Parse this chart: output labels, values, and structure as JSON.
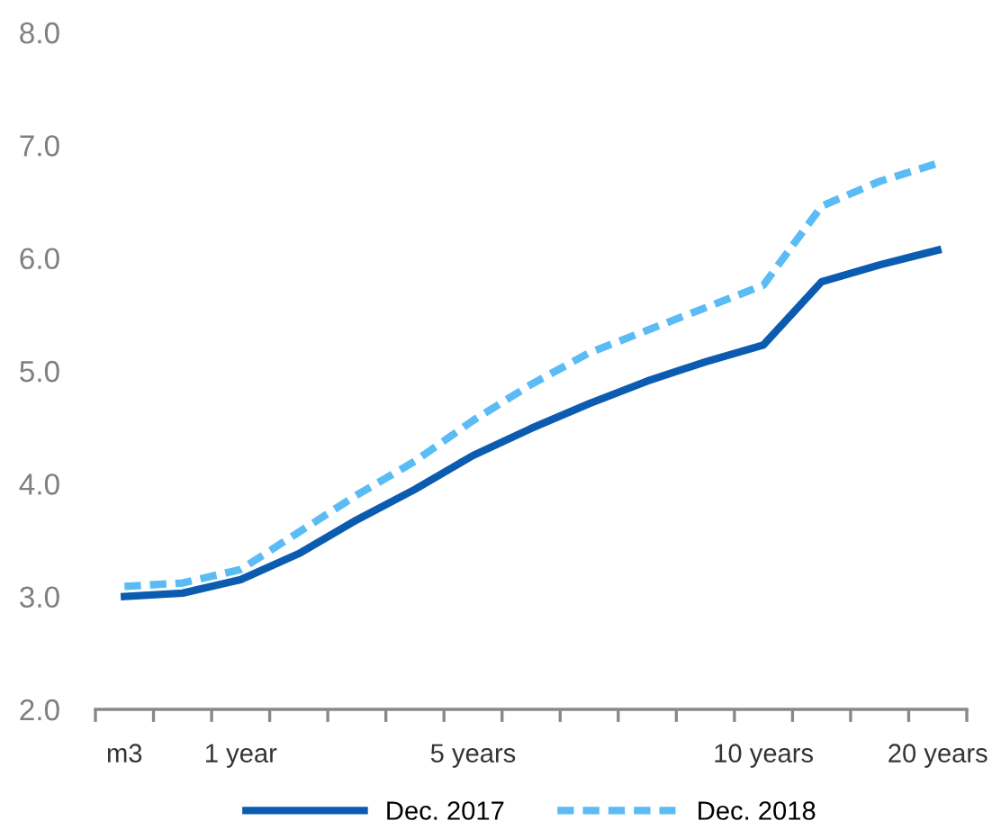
{
  "chart_data": {
    "type": "line",
    "categories": [
      "m3",
      null,
      "1 year",
      null,
      null,
      null,
      "5 years",
      null,
      null,
      null,
      null,
      "10 years",
      null,
      null,
      "20 years"
    ],
    "series": [
      {
        "name": "Dec. 2017",
        "color": "#0b5cb0",
        "line_style": "solid",
        "values": [
          3.0,
          3.03,
          3.15,
          3.38,
          3.68,
          3.95,
          4.25,
          4.49,
          4.71,
          4.91,
          5.08,
          5.23,
          5.79,
          5.94,
          6.07
        ]
      },
      {
        "name": "Dec. 2018",
        "color": "#5bbcf5",
        "line_style": "dashed",
        "values": [
          3.09,
          3.12,
          3.24,
          3.57,
          3.9,
          4.2,
          4.56,
          4.88,
          5.16,
          5.36,
          5.56,
          5.76,
          6.46,
          6.68,
          6.84
        ]
      }
    ],
    "ylim": [
      2.0,
      8.0
    ],
    "yticks": [
      {
        "value": 2,
        "label": "2.0"
      },
      {
        "value": 3,
        "label": "3.0"
      },
      {
        "value": 4,
        "label": "4.0"
      },
      {
        "value": 5,
        "label": "5.0"
      },
      {
        "value": 6,
        "label": "6.0"
      },
      {
        "value": 7,
        "label": "7.0"
      },
      {
        "value": 8,
        "label": "8.0"
      }
    ],
    "grid": false,
    "legend": "bottom",
    "marker": "none"
  }
}
